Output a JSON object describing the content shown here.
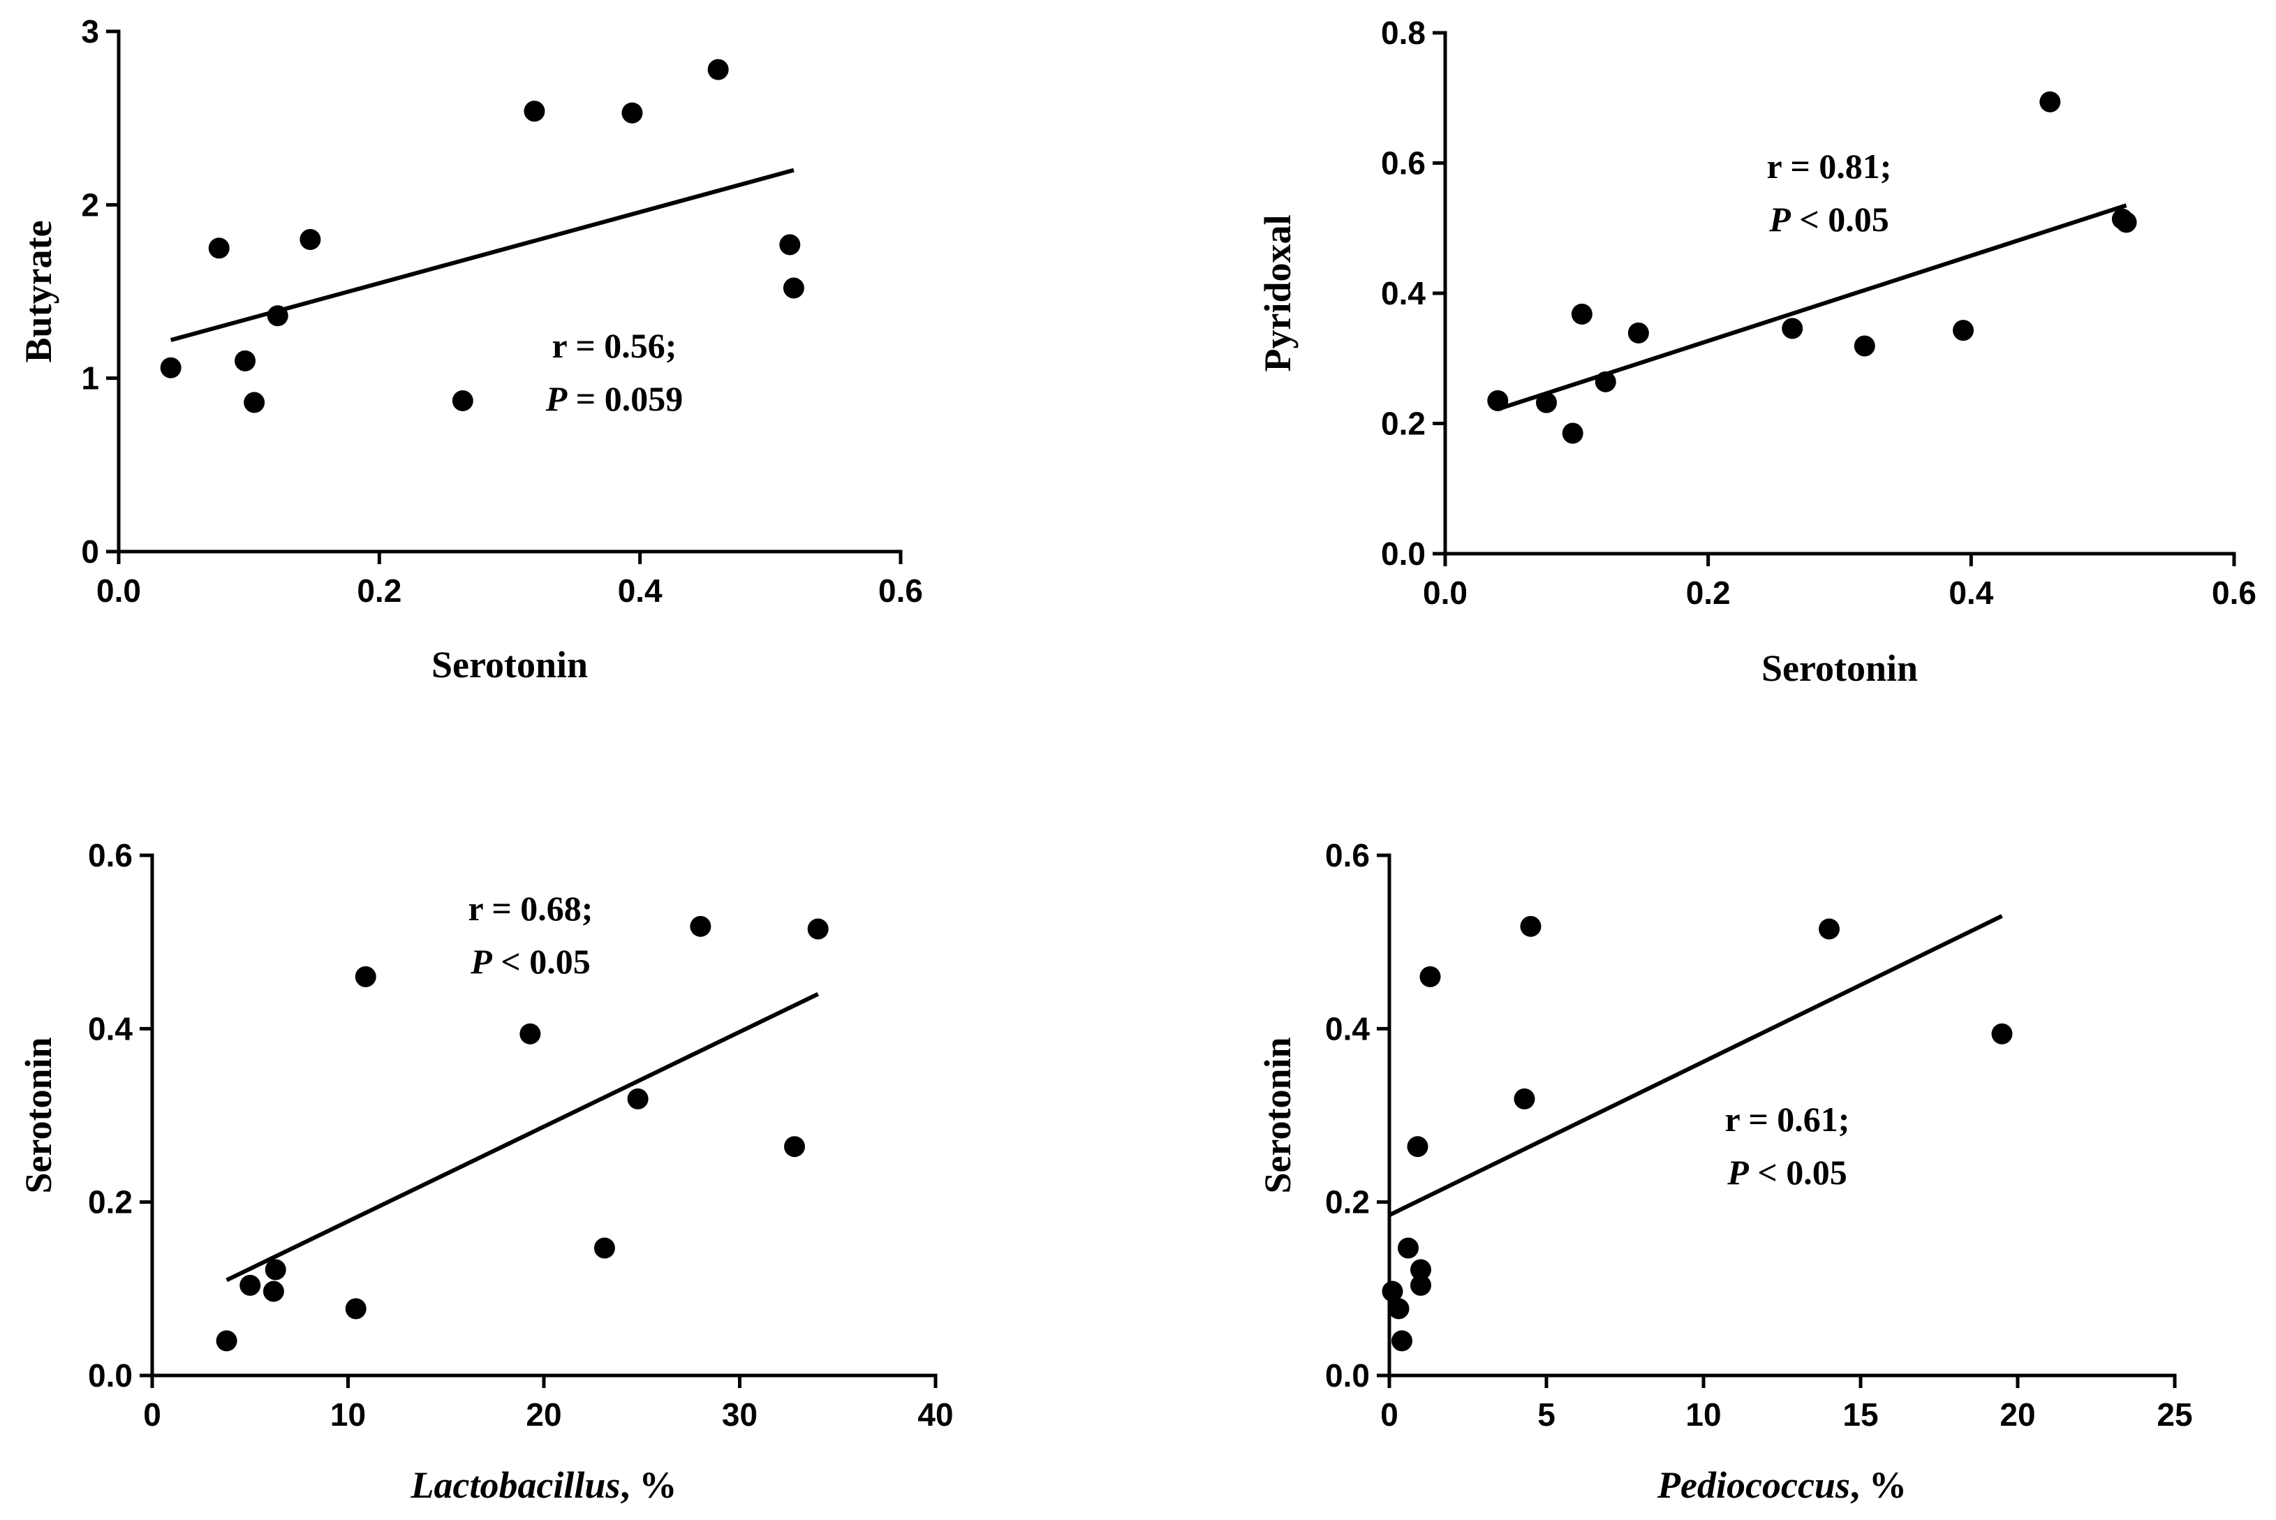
{
  "chart_data": [
    {
      "type": "scatter",
      "panel": "top-left",
      "xlabel": "Serotonin",
      "xlabel_italic": false,
      "xlabel_suffix": "",
      "ylabel": "Butyrate",
      "xlim": [
        0,
        0.6
      ],
      "ylim": [
        0,
        3
      ],
      "xticks": [
        0,
        0.2,
        0.4,
        0.6
      ],
      "xtick_labels": [
        "0.0",
        "0.2",
        "0.4",
        "0.6"
      ],
      "yticks": [
        0,
        1,
        2,
        3
      ],
      "ytick_labels": [
        "0",
        "1",
        "2",
        "3"
      ],
      "points": [
        {
          "x": 0.04,
          "y": 1.06
        },
        {
          "x": 0.077,
          "y": 1.75
        },
        {
          "x": 0.097,
          "y": 1.1
        },
        {
          "x": 0.104,
          "y": 0.86
        },
        {
          "x": 0.122,
          "y": 1.36
        },
        {
          "x": 0.147,
          "y": 1.8
        },
        {
          "x": 0.264,
          "y": 0.87
        },
        {
          "x": 0.319,
          "y": 2.54
        },
        {
          "x": 0.394,
          "y": 2.53
        },
        {
          "x": 0.46,
          "y": 2.78
        },
        {
          "x": 0.515,
          "y": 1.77
        },
        {
          "x": 0.518,
          "y": 1.52
        }
      ],
      "fit_line": {
        "x": [
          0.04,
          0.518
        ],
        "y": [
          1.22,
          2.2
        ]
      },
      "annotation": {
        "line1": "r = 0.56;",
        "p_symbol": "P",
        "p_text": " = 0.059"
      }
    },
    {
      "type": "scatter",
      "panel": "top-right",
      "xlabel": "Serotonin",
      "xlabel_italic": false,
      "xlabel_suffix": "",
      "ylabel": "Pyridoxal",
      "xlim": [
        0,
        0.6
      ],
      "ylim": [
        0,
        0.8
      ],
      "xticks": [
        0,
        0.2,
        0.4,
        0.6
      ],
      "xtick_labels": [
        "0.0",
        "0.2",
        "0.4",
        "0.6"
      ],
      "yticks": [
        0,
        0.2,
        0.4,
        0.6,
        0.8
      ],
      "ytick_labels": [
        "0.0",
        "0.2",
        "0.4",
        "0.6",
        "0.8"
      ],
      "points": [
        {
          "x": 0.04,
          "y": 0.235
        },
        {
          "x": 0.077,
          "y": 0.232
        },
        {
          "x": 0.097,
          "y": 0.185
        },
        {
          "x": 0.104,
          "y": 0.368
        },
        {
          "x": 0.122,
          "y": 0.264
        },
        {
          "x": 0.147,
          "y": 0.339
        },
        {
          "x": 0.264,
          "y": 0.346
        },
        {
          "x": 0.319,
          "y": 0.319
        },
        {
          "x": 0.394,
          "y": 0.343
        },
        {
          "x": 0.46,
          "y": 0.694
        },
        {
          "x": 0.515,
          "y": 0.514
        },
        {
          "x": 0.518,
          "y": 0.509
        }
      ],
      "fit_line": {
        "x": [
          0.04,
          0.518
        ],
        "y": [
          0.222,
          0.535
        ]
      },
      "annotation": {
        "line1": "r = 0.81;",
        "p_symbol": "P",
        "p_text": " < 0.05"
      }
    },
    {
      "type": "scatter",
      "panel": "bottom-left",
      "xlabel": "Lactobacillus",
      "xlabel_italic": true,
      "xlabel_suffix": ", %",
      "ylabel": "Serotonin",
      "xlim": [
        0,
        40
      ],
      "ylim": [
        0,
        0.6
      ],
      "xticks": [
        0,
        10,
        20,
        30,
        40
      ],
      "xtick_labels": [
        "0",
        "10",
        "20",
        "30",
        "40"
      ],
      "yticks": [
        0,
        0.2,
        0.4,
        0.6
      ],
      "ytick_labels": [
        "0.0",
        "0.2",
        "0.4",
        "0.6"
      ],
      "points": [
        {
          "x": 3.8,
          "y": 0.04
        },
        {
          "x": 5.0,
          "y": 0.104
        },
        {
          "x": 6.2,
          "y": 0.097
        },
        {
          "x": 6.3,
          "y": 0.122
        },
        {
          "x": 10.4,
          "y": 0.077
        },
        {
          "x": 10.9,
          "y": 0.46
        },
        {
          "x": 19.3,
          "y": 0.394
        },
        {
          "x": 23.1,
          "y": 0.147
        },
        {
          "x": 24.8,
          "y": 0.319
        },
        {
          "x": 28.0,
          "y": 0.518
        },
        {
          "x": 32.8,
          "y": 0.264
        },
        {
          "x": 34.0,
          "y": 0.515
        }
      ],
      "fit_line": {
        "x": [
          3.8,
          34.0
        ],
        "y": [
          0.11,
          0.44
        ]
      },
      "annotation": {
        "line1": "r = 0.68;",
        "p_symbol": "P",
        "p_text": " < 0.05"
      }
    },
    {
      "type": "scatter",
      "panel": "bottom-right",
      "xlabel": "Pediococcus",
      "xlabel_italic": true,
      "xlabel_suffix": ", %",
      "ylabel": "Serotonin",
      "xlim": [
        0,
        25
      ],
      "ylim": [
        0,
        0.6
      ],
      "xticks": [
        0,
        5,
        10,
        15,
        20,
        25
      ],
      "xtick_labels": [
        "0",
        "5",
        "10",
        "15",
        "20",
        "25"
      ],
      "yticks": [
        0,
        0.2,
        0.4,
        0.6
      ],
      "ytick_labels": [
        "0.0",
        "0.2",
        "0.4",
        "0.6"
      ],
      "points": [
        {
          "x": 0.1,
          "y": 0.097
        },
        {
          "x": 0.3,
          "y": 0.077
        },
        {
          "x": 0.4,
          "y": 0.04
        },
        {
          "x": 0.6,
          "y": 0.147
        },
        {
          "x": 0.9,
          "y": 0.264
        },
        {
          "x": 1.0,
          "y": 0.122
        },
        {
          "x": 1.0,
          "y": 0.104
        },
        {
          "x": 1.3,
          "y": 0.46
        },
        {
          "x": 4.3,
          "y": 0.319
        },
        {
          "x": 4.5,
          "y": 0.518
        },
        {
          "x": 14.0,
          "y": 0.515
        },
        {
          "x": 19.5,
          "y": 0.394
        }
      ],
      "fit_line": {
        "x": [
          0.0,
          19.5
        ],
        "y": [
          0.185,
          0.53
        ]
      },
      "annotation": {
        "line1": "r = 0.61;",
        "p_symbol": "P",
        "p_text": " < 0.05"
      }
    }
  ]
}
